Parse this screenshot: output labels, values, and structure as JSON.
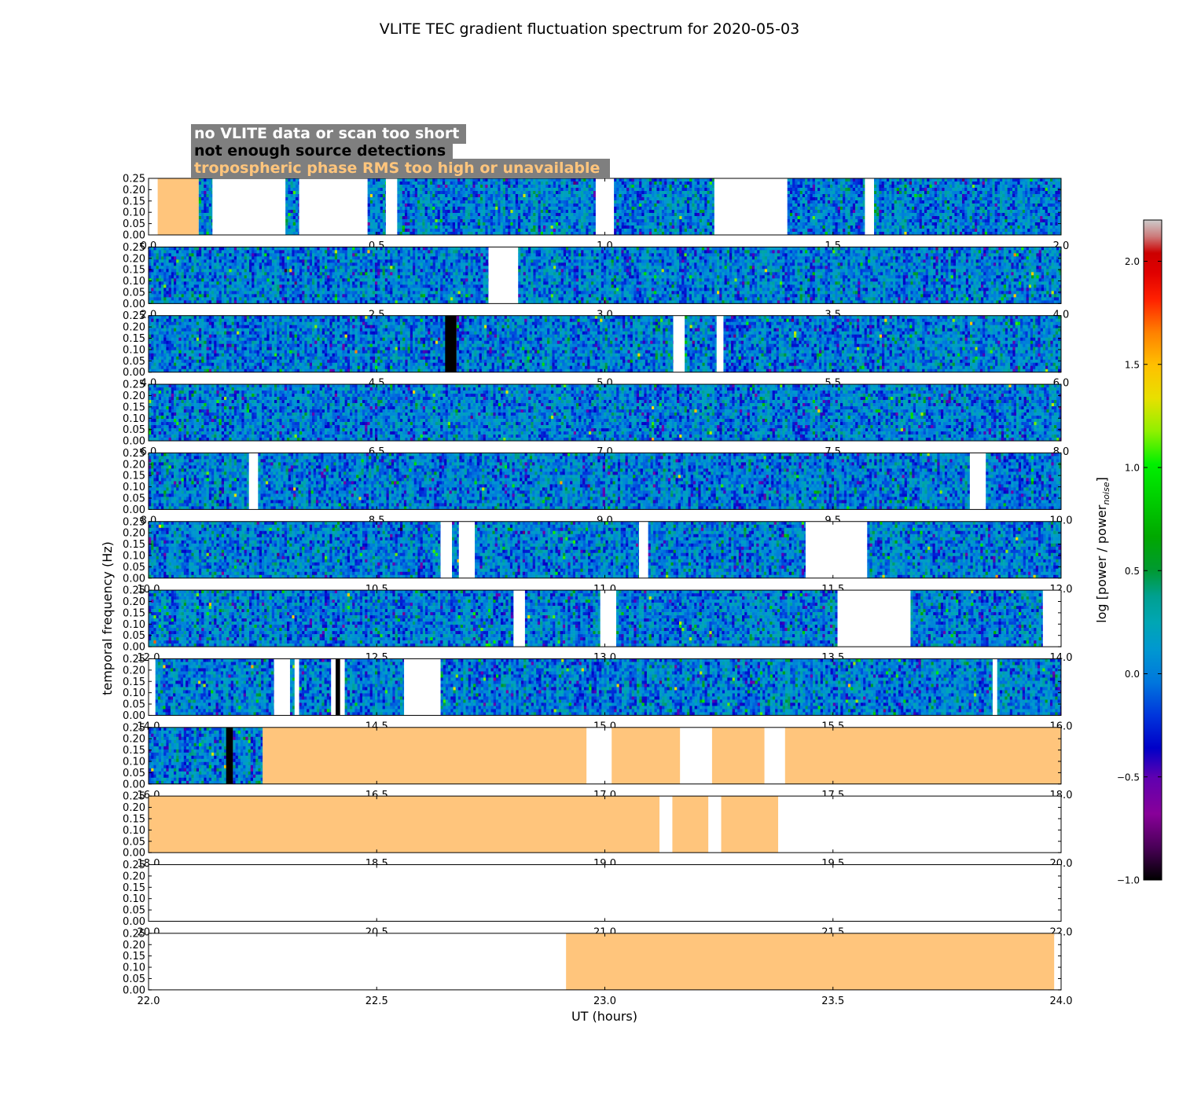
{
  "chart_data": {
    "type": "heatmap",
    "title": "VLITE TEC gradient fluctuation spectrum for 2020-05-03",
    "xlabel": "UT (hours)",
    "ylabel": "temporal frequency (Hz)",
    "colorbar": {
      "label": "log [power / power",
      "label_sub": "noise",
      "label_close": "]",
      "range": [
        -1.0,
        2.2
      ],
      "ticks": [
        "−1.0",
        "−0.5",
        "0.0",
        "0.5",
        "1.0",
        "1.5",
        "2.0"
      ],
      "tick_values": [
        -1.0,
        -0.5,
        0.0,
        0.5,
        1.0,
        1.5,
        2.0
      ],
      "colormap": "nipy_spectral"
    },
    "legend": {
      "placement": "top-left",
      "items": [
        {
          "label": "no VLITE data or scan too short",
          "text_color": "#ffffff"
        },
        {
          "label": "not enough source detections",
          "text_color": "#000000"
        },
        {
          "label": "tropospheric phase RMS too high or unavailable",
          "text_color": "#ffc57c"
        }
      ],
      "box_color": "#7f7f7f"
    },
    "status_colors": {
      "no_data": "#ffffff",
      "few_detections": "#000000",
      "troposphere": "#ffc57c"
    },
    "y_ticks": [
      "0.00",
      "0.05",
      "0.10",
      "0.15",
      "0.20",
      "0.25"
    ],
    "y_range": [
      0,
      0.25
    ],
    "panels": [
      {
        "x_range": [
          0,
          2
        ],
        "x_ticks": [
          "0.0",
          "0.5",
          "1.0",
          "1.5",
          "2.0"
        ],
        "segments": [
          [
            0.0,
            0.02,
            "none"
          ],
          [
            0.02,
            0.11,
            "tropo"
          ],
          [
            0.11,
            0.14,
            "data"
          ],
          [
            0.14,
            0.3,
            "none"
          ],
          [
            0.3,
            0.33,
            "data"
          ],
          [
            0.33,
            0.48,
            "none"
          ],
          [
            0.48,
            0.52,
            "data"
          ],
          [
            0.52,
            0.545,
            "none"
          ],
          [
            0.545,
            0.98,
            "data"
          ],
          [
            0.98,
            1.02,
            "none"
          ],
          [
            1.02,
            1.24,
            "data"
          ],
          [
            1.24,
            1.4,
            "none"
          ],
          [
            1.4,
            1.57,
            "data"
          ],
          [
            1.57,
            1.59,
            "none"
          ],
          [
            1.59,
            2.0,
            "data"
          ]
        ]
      },
      {
        "x_range": [
          2,
          4
        ],
        "x_ticks": [
          "2.0",
          "2.5",
          "3.0",
          "3.5",
          "4.0"
        ],
        "segments": [
          [
            2.0,
            2.745,
            "data"
          ],
          [
            2.745,
            2.81,
            "none"
          ],
          [
            2.81,
            4.0,
            "data"
          ]
        ]
      },
      {
        "x_range": [
          4,
          6
        ],
        "x_ticks": [
          "4.0",
          "4.5",
          "5.0",
          "5.5",
          "6.0"
        ],
        "segments": [
          [
            4.0,
            4.65,
            "data"
          ],
          [
            4.65,
            4.675,
            "few"
          ],
          [
            4.675,
            5.15,
            "data"
          ],
          [
            5.15,
            5.175,
            "none"
          ],
          [
            5.175,
            5.245,
            "data"
          ],
          [
            5.245,
            5.26,
            "none"
          ],
          [
            5.26,
            6.0,
            "data"
          ]
        ]
      },
      {
        "x_range": [
          6,
          8
        ],
        "x_ticks": [
          "6.0",
          "6.5",
          "7.0",
          "7.5",
          "8.0"
        ],
        "segments": [
          [
            6.0,
            8.0,
            "data"
          ]
        ]
      },
      {
        "x_range": [
          8,
          10
        ],
        "x_ticks": [
          "8.0",
          "8.5",
          "9.0",
          "9.5",
          "10.0"
        ],
        "segments": [
          [
            8.0,
            8.22,
            "data"
          ],
          [
            8.22,
            8.24,
            "none"
          ],
          [
            8.24,
            9.8,
            "data"
          ],
          [
            9.8,
            9.835,
            "none"
          ],
          [
            9.835,
            10.0,
            "data"
          ]
        ]
      },
      {
        "x_range": [
          10,
          12
        ],
        "x_ticks": [
          "10.0",
          "10.5",
          "11.0",
          "11.5",
          "12.0"
        ],
        "segments": [
          [
            10.0,
            10.64,
            "data"
          ],
          [
            10.64,
            10.665,
            "none"
          ],
          [
            10.665,
            10.68,
            "data"
          ],
          [
            10.68,
            10.715,
            "none"
          ],
          [
            10.715,
            11.075,
            "data"
          ],
          [
            11.075,
            11.095,
            "none"
          ],
          [
            11.095,
            11.44,
            "data"
          ],
          [
            11.44,
            11.575,
            "none"
          ],
          [
            11.575,
            12.0,
            "data"
          ]
        ]
      },
      {
        "x_range": [
          12,
          14
        ],
        "x_ticks": [
          "12.0",
          "12.5",
          "13.0",
          "13.5",
          "14.0"
        ],
        "segments": [
          [
            12.0,
            12.8,
            "data"
          ],
          [
            12.8,
            12.825,
            "none"
          ],
          [
            12.825,
            12.99,
            "data"
          ],
          [
            12.99,
            13.025,
            "none"
          ],
          [
            13.025,
            13.51,
            "data"
          ],
          [
            13.51,
            13.67,
            "none"
          ],
          [
            13.67,
            13.96,
            "data"
          ],
          [
            13.96,
            14.0,
            "none"
          ]
        ]
      },
      {
        "x_range": [
          14,
          16
        ],
        "x_ticks": [
          "14.0",
          "14.5",
          "15.0",
          "15.5",
          "16.0"
        ],
        "segments": [
          [
            14.0,
            14.015,
            "none"
          ],
          [
            14.015,
            14.275,
            "data"
          ],
          [
            14.275,
            14.31,
            "none"
          ],
          [
            14.31,
            14.32,
            "data"
          ],
          [
            14.32,
            14.33,
            "none"
          ],
          [
            14.33,
            14.4,
            "data"
          ],
          [
            14.4,
            14.41,
            "none"
          ],
          [
            14.41,
            14.42,
            "few"
          ],
          [
            14.42,
            14.43,
            "none"
          ],
          [
            14.43,
            14.56,
            "data"
          ],
          [
            14.56,
            14.64,
            "none"
          ],
          [
            14.64,
            15.85,
            "data"
          ],
          [
            15.85,
            15.86,
            "none"
          ],
          [
            15.86,
            16.0,
            "data"
          ]
        ]
      },
      {
        "x_range": [
          16,
          18
        ],
        "x_ticks": [
          "16.0",
          "16.5",
          "17.0",
          "17.5",
          "18.0"
        ],
        "segments": [
          [
            16.0,
            16.17,
            "data"
          ],
          [
            16.17,
            16.185,
            "few"
          ],
          [
            16.185,
            16.25,
            "data"
          ],
          [
            16.25,
            16.96,
            "tropo"
          ],
          [
            16.96,
            17.015,
            "none"
          ],
          [
            17.015,
            17.165,
            "tropo"
          ],
          [
            17.165,
            17.235,
            "none"
          ],
          [
            17.235,
            17.35,
            "tropo"
          ],
          [
            17.35,
            17.395,
            "none"
          ],
          [
            17.395,
            18.0,
            "tropo"
          ]
        ]
      },
      {
        "x_range": [
          18,
          20
        ],
        "x_ticks": [
          "18.0",
          "18.5",
          "19.0",
          "19.5",
          "20.0"
        ],
        "segments": [
          [
            18.0,
            19.12,
            "tropo"
          ],
          [
            19.12,
            19.148,
            "none"
          ],
          [
            19.148,
            19.227,
            "tropo"
          ],
          [
            19.227,
            19.255,
            "none"
          ],
          [
            19.255,
            19.38,
            "tropo"
          ],
          [
            19.38,
            20.0,
            "none"
          ]
        ]
      },
      {
        "x_range": [
          20,
          22
        ],
        "x_ticks": [
          "20.0",
          "20.5",
          "21.0",
          "21.5",
          "22.0"
        ],
        "segments": [
          [
            20.0,
            22.0,
            "none"
          ]
        ]
      },
      {
        "x_range": [
          22,
          24
        ],
        "x_ticks": [
          "22.0",
          "22.5",
          "23.0",
          "23.5",
          "24.0"
        ],
        "segments": [
          [
            22.0,
            22.915,
            "none"
          ],
          [
            22.915,
            23.985,
            "tropo"
          ],
          [
            23.985,
            24.0,
            "none"
          ]
        ]
      }
    ]
  }
}
